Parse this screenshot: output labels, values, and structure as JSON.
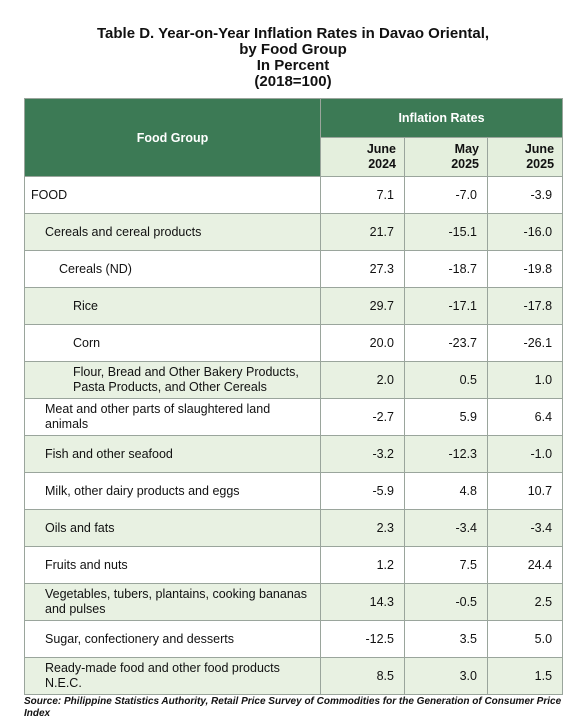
{
  "header": {
    "title": [
      "Table D. Year-on-Year Inflation Rates in Davao Oriental,",
      "by Food Group",
      "In Percent",
      "(2018=100)"
    ]
  },
  "table": {
    "columns": [
      "Food Group",
      [
        "June",
        "2024"
      ],
      [
        "May",
        "2025"
      ],
      [
        "June",
        "2025"
      ]
    ],
    "group_header": "Inflation Rates",
    "rows": [
      [
        "FOOD",
        "7.1",
        "-7.0",
        "-3.9"
      ],
      [
        "Cereals and cereal products",
        "21.7",
        "-15.1",
        "-16.0"
      ],
      [
        "Cereals (ND)",
        "27.3",
        "-18.7",
        "-19.8"
      ],
      [
        "Rice",
        "29.7",
        "-17.1",
        "-17.8"
      ],
      [
        "Corn",
        "20.0",
        "-23.7",
        "-26.1"
      ],
      [
        "Flour, Bread and Other Bakery Products, Pasta Products, and Other Cereals",
        "2.0",
        "0.5",
        "1.0"
      ],
      [
        "Meat and other parts of slaughtered land animals",
        "-2.7",
        "5.9",
        "6.4"
      ],
      [
        "Fish and other seafood",
        "-3.2",
        "-12.3",
        "-1.0"
      ],
      [
        "Milk, other dairy products and eggs",
        "-5.9",
        "4.8",
        "10.7"
      ],
      [
        "Oils and fats",
        "2.3",
        "-3.4",
        "-3.4"
      ],
      [
        "Fruits and nuts",
        "1.2",
        "7.5",
        "24.4"
      ],
      [
        "Vegetables, tubers, plantains, cooking bananas and pulses",
        "14.3",
        "-0.5",
        "2.5"
      ],
      [
        "Sugar, confectionery and desserts",
        "-12.5",
        "3.5",
        "5.0"
      ],
      [
        "Ready-made food and other food products N.E.C.",
        "8.5",
        "3.0",
        "1.5"
      ]
    ]
  },
  "footer": {
    "source": "Source: Philippine Statistics Authority, Retail Price Survey of Commodities for the Generation of Consumer Price Index"
  }
}
